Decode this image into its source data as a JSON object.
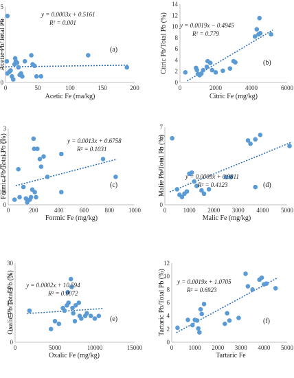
{
  "chart_data": [
    {
      "id": "a",
      "type": "scatter",
      "tag": "(a)",
      "xlabel": "Acetic Fe (ma/kg)",
      "ylabel": "Acetic Pb/Total Pb",
      "xlim": [
        0,
        200
      ],
      "ylim": [
        0,
        2.5
      ],
      "xticks": [
        0,
        50,
        100,
        150,
        200
      ],
      "yticks": [
        0,
        0.5,
        1,
        1.5,
        2,
        2.5
      ],
      "equation": "y = 0.0003x + 0.5161",
      "r2": "R² = 0.001",
      "trend": [
        [
          0,
          0.5161
        ],
        [
          190,
          0.5731
        ]
      ],
      "points": [
        [
          3,
          2.2
        ],
        [
          2,
          0.7
        ],
        [
          3,
          0.3
        ],
        [
          6,
          0.35
        ],
        [
          8,
          0.4
        ],
        [
          10,
          0.2
        ],
        [
          12,
          0.1
        ],
        [
          14,
          0.6
        ],
        [
          15,
          0.8
        ],
        [
          16,
          0.7
        ],
        [
          18,
          0.65
        ],
        [
          20,
          0.5
        ],
        [
          22,
          0.25
        ],
        [
          24,
          0.3
        ],
        [
          26,
          0.2
        ],
        [
          30,
          0.7
        ],
        [
          40,
          0.9
        ],
        [
          42,
          0.6
        ],
        [
          45,
          0.55
        ],
        [
          48,
          0.2
        ],
        [
          55,
          0.2
        ],
        [
          128,
          0.9
        ],
        [
          188,
          0.5
        ]
      ]
    },
    {
      "id": "b",
      "type": "scatter",
      "tag": "(b)",
      "xlabel": "Citric Fe (mg/kg)",
      "ylabel": "Citric Pb/Total Pb (%)",
      "xlim": [
        0,
        6000
      ],
      "ylim": [
        0,
        14
      ],
      "xticks": [
        0,
        2000,
        4000,
        6000
      ],
      "yticks": [
        0,
        2,
        4,
        6,
        8,
        10,
        12,
        14
      ],
      "equation": "y = 0.0019x − 0.4945",
      "r2": "R² = 0.779",
      "trend": [
        [
          400,
          0.2655
        ],
        [
          5200,
          9.3855
        ]
      ],
      "points": [
        [
          300,
          1.8
        ],
        [
          900,
          2.6
        ],
        [
          950,
          2.2
        ],
        [
          1000,
          1.5
        ],
        [
          1100,
          1.3
        ],
        [
          1200,
          1.6
        ],
        [
          1300,
          2.2
        ],
        [
          1500,
          2.8
        ],
        [
          1550,
          3.8
        ],
        [
          1700,
          3.5
        ],
        [
          1800,
          2.2
        ],
        [
          2000,
          1.8
        ],
        [
          2400,
          2.1
        ],
        [
          2800,
          2.5
        ],
        [
          3000,
          3.8
        ],
        [
          3100,
          3.6
        ],
        [
          4200,
          8.2
        ],
        [
          4300,
          9.5
        ],
        [
          4400,
          8.6
        ],
        [
          4450,
          11.5
        ],
        [
          4500,
          8.8
        ],
        [
          5100,
          8.6
        ]
      ]
    },
    {
      "id": "c",
      "type": "scatter",
      "tag": "(c)",
      "xlabel": "Formic Fe (mg/kg)",
      "ylabel": "Formic Pb/Total Pb (%)",
      "xlim": [
        0,
        1000
      ],
      "ylim": [
        0,
        3
      ],
      "xticks": [
        0,
        200,
        400,
        600,
        800,
        1000
      ],
      "yticks": [
        0,
        0.5,
        1,
        1.5,
        2,
        2.5,
        3
      ],
      "equation": "y = 0.0013x + 0.6758",
      "r2": "R² = 0.1031",
      "trend": [
        [
          60,
          0.7538
        ],
        [
          860,
          1.7938
        ]
      ],
      "points": [
        [
          50,
          0.2
        ],
        [
          80,
          1.4
        ],
        [
          90,
          0.3
        ],
        [
          120,
          0.7
        ],
        [
          140,
          0.25
        ],
        [
          150,
          0.1
        ],
        [
          170,
          0.2
        ],
        [
          180,
          0.3
        ],
        [
          190,
          0.6
        ],
        [
          200,
          2.6
        ],
        [
          205,
          2.2
        ],
        [
          210,
          0.5
        ],
        [
          220,
          0.3
        ],
        [
          230,
          2.2
        ],
        [
          250,
          1.8
        ],
        [
          260,
          1.5
        ],
        [
          280,
          1.9
        ],
        [
          310,
          1.1
        ],
        [
          420,
          2.0
        ],
        [
          420,
          0.5
        ],
        [
          750,
          1.8
        ],
        [
          850,
          1.1
        ]
      ]
    },
    {
      "id": "d",
      "type": "scatter",
      "tag": "(d)",
      "xlabel": "Malic Fe (mg/kg)",
      "ylabel": "Malic Pb/Total Pb (%)",
      "xlim": [
        0,
        5000
      ],
      "ylim": [
        0,
        7
      ],
      "xticks": [
        0,
        1000,
        2000,
        3000,
        4000,
        5000
      ],
      "yticks": [
        0,
        1,
        2,
        3,
        4,
        5,
        6,
        7
      ],
      "equation": "y = 0.0009x + 0.9811",
      "r2": "R² = 0.4123",
      "trend": [
        [
          200,
          1.1611
        ],
        [
          5200,
          5.6611
        ]
      ],
      "points": [
        [
          300,
          6.0
        ],
        [
          500,
          1.4
        ],
        [
          600,
          0.9
        ],
        [
          700,
          0.7
        ],
        [
          800,
          1.0
        ],
        [
          900,
          1.2
        ],
        [
          1000,
          2.8
        ],
        [
          1100,
          2.9
        ],
        [
          1200,
          2.1
        ],
        [
          1300,
          1.7
        ],
        [
          1500,
          1.3
        ],
        [
          1600,
          1.0
        ],
        [
          1800,
          1.4
        ],
        [
          2500,
          2.5
        ],
        [
          2700,
          2.5
        ],
        [
          3400,
          5.8
        ],
        [
          3500,
          5.5
        ],
        [
          3700,
          5.9
        ],
        [
          3700,
          1.6
        ],
        [
          3900,
          6.3
        ],
        [
          5100,
          5.3
        ]
      ]
    },
    {
      "id": "e",
      "type": "scatter",
      "tag": "(e)",
      "xlabel": "Oxalic Fe (mg/kg)",
      "ylabel": "Oxalic Pb/Total Pb (%)",
      "xlim": [
        0,
        15000
      ],
      "ylim": [
        0,
        30
      ],
      "xticks": [
        0,
        5000,
        10000,
        15000
      ],
      "yticks": [
        0,
        5,
        10,
        15,
        20,
        25,
        30
      ],
      "equation": "y = 0.0002x + 10.594",
      "r2": "R² = 0.0072",
      "trend": [
        [
          1500,
          10.894
        ],
        [
          11000,
          12.794
        ]
      ],
      "points": [
        [
          1800,
          12
        ],
        [
          4500,
          5
        ],
        [
          5000,
          8
        ],
        [
          5500,
          7
        ],
        [
          6000,
          13
        ],
        [
          6200,
          12
        ],
        [
          6500,
          14
        ],
        [
          6600,
          19
        ],
        [
          6700,
          15
        ],
        [
          7000,
          24
        ],
        [
          7100,
          21
        ],
        [
          7200,
          13
        ],
        [
          7300,
          11
        ],
        [
          7500,
          8
        ],
        [
          7600,
          14
        ],
        [
          8000,
          15
        ],
        [
          8100,
          10
        ],
        [
          8300,
          9
        ],
        [
          8800,
          10
        ],
        [
          9000,
          11
        ],
        [
          9500,
          10
        ],
        [
          10000,
          9
        ],
        [
          10500,
          10
        ]
      ]
    },
    {
      "id": "f",
      "type": "scatter",
      "tag": "(f)",
      "xlabel": "Tartaric Fe",
      "ylabel": "Tartaric Pb/Total Pb (%)",
      "xlim": [
        0,
        5000
      ],
      "ylim": [
        0,
        12
      ],
      "xticks": [
        0,
        1000,
        2000,
        3000,
        4000,
        5000
      ],
      "yticks": [
        0,
        2,
        4,
        6,
        8,
        10,
        12
      ],
      "equation": "y = 0.0019x + 1.0705",
      "r2": "R² = 0.6923",
      "trend": [
        [
          200,
          1.4505
        ],
        [
          4600,
          9.8105
        ]
      ],
      "points": [
        [
          250,
          2.2
        ],
        [
          700,
          3.4
        ],
        [
          900,
          2.6
        ],
        [
          1000,
          3.4
        ],
        [
          1100,
          3.3
        ],
        [
          1150,
          2.1
        ],
        [
          1200,
          1.5
        ],
        [
          1250,
          5.0
        ],
        [
          1300,
          4.3
        ],
        [
          1400,
          5.8
        ],
        [
          2300,
          2.8
        ],
        [
          2400,
          4.4
        ],
        [
          2500,
          3.3
        ],
        [
          2900,
          3.7
        ],
        [
          3200,
          10.4
        ],
        [
          3300,
          8.5
        ],
        [
          3500,
          8.0
        ],
        [
          3800,
          9.5
        ],
        [
          3900,
          9.8
        ],
        [
          4000,
          8.8
        ],
        [
          4100,
          8.9
        ],
        [
          4500,
          8.2
        ]
      ]
    }
  ]
}
